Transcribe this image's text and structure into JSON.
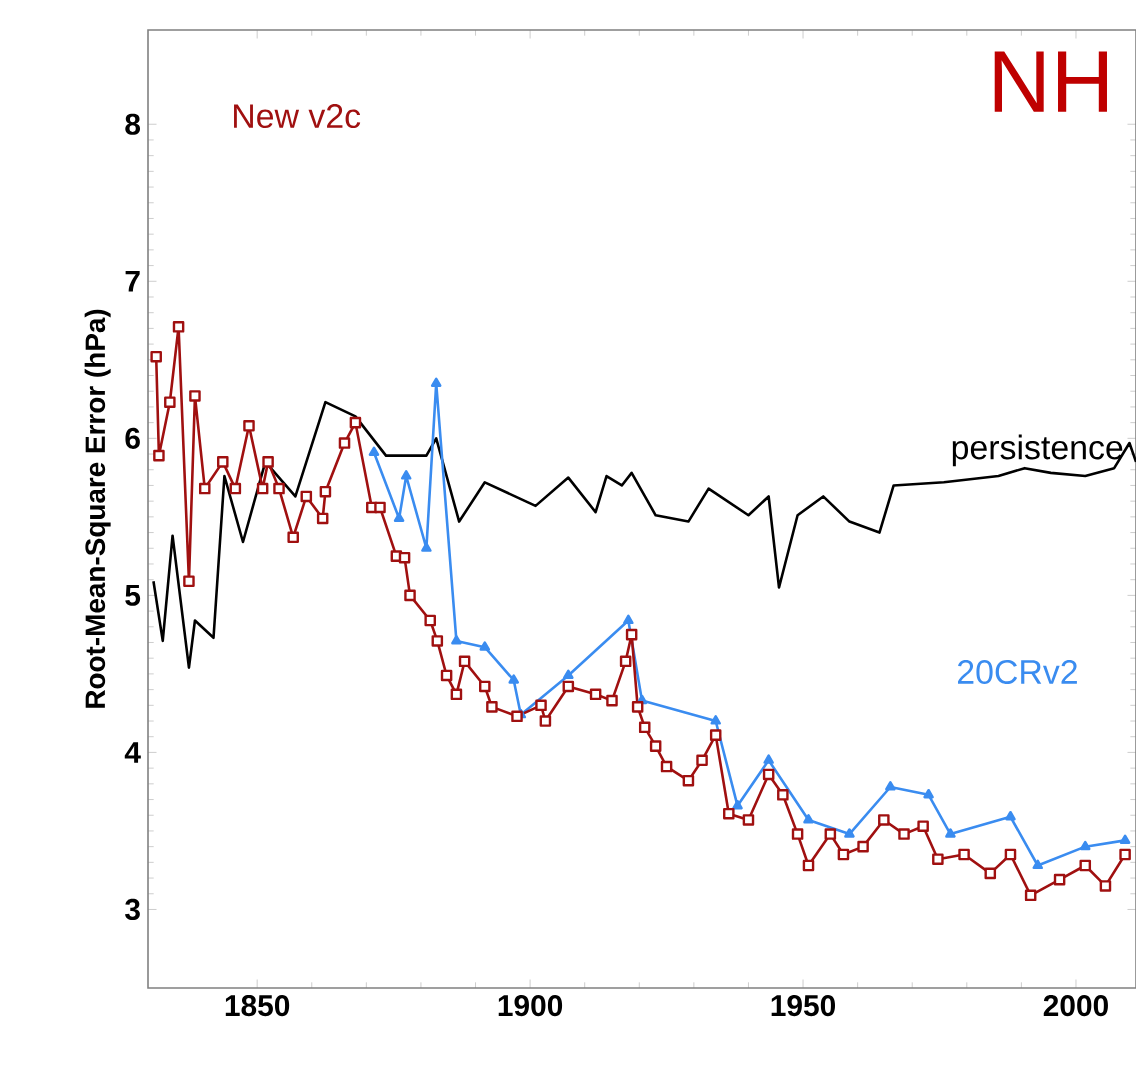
{
  "chart_data": {
    "type": "line",
    "title": "NH",
    "ylabel": "Root-Mean-Square Error (hPa)",
    "xlim": [
      1830,
      2011
    ],
    "ylim": [
      2.5,
      8.6
    ],
    "xticks": [
      1850,
      1900,
      1950,
      2000
    ],
    "yticks": [
      3,
      4,
      5,
      6,
      7,
      8
    ],
    "grid": false,
    "legend": false,
    "series": [
      {
        "name": "persistence",
        "color": "#000000",
        "marker": "none",
        "x": [
          1831,
          1832.7,
          1834.5,
          1837.5,
          1838.6,
          1842,
          1844,
          1847.4,
          1851.5,
          1857,
          1862.5,
          1868,
          1873.6,
          1881,
          1882.8,
          1887,
          1891.7,
          1901,
          1907,
          1912,
          1914,
          1916.8,
          1918.6,
          1923,
          1929,
          1932.7,
          1940,
          1943.7,
          1945.6,
          1949,
          1953.7,
          1958.5,
          1964,
          1966.6,
          1975.8,
          1985.8,
          1990.6,
          1995.4,
          2001.7,
          2007,
          2009.8,
          2011
        ],
        "values": [
          5.09,
          4.71,
          5.38,
          4.54,
          4.84,
          4.73,
          5.76,
          5.34,
          5.85,
          5.63,
          6.23,
          6.14,
          5.89,
          5.89,
          6.0,
          5.47,
          5.72,
          5.57,
          5.75,
          5.53,
          5.76,
          5.7,
          5.78,
          5.51,
          5.47,
          5.68,
          5.51,
          5.63,
          5.05,
          5.51,
          5.63,
          5.47,
          5.4,
          5.7,
          5.72,
          5.76,
          5.81,
          5.78,
          5.76,
          5.81,
          5.97,
          5.85
        ]
      },
      {
        "name": "20CRv2",
        "color": "#3a8cf0",
        "marker": "triangle",
        "x": [
          1871.4,
          1876,
          1877.3,
          1881,
          1882.8,
          1886.5,
          1891.7,
          1897,
          1898.3,
          1907,
          1918,
          1920.5,
          1934,
          1938,
          1943.7,
          1951,
          1958.5,
          1966,
          1973,
          1977,
          1988,
          1993,
          2001.7,
          2009
        ],
        "values": [
          5.91,
          5.49,
          5.76,
          5.3,
          6.35,
          4.71,
          4.67,
          4.46,
          4.24,
          4.49,
          4.84,
          4.33,
          4.2,
          3.66,
          3.95,
          3.57,
          3.48,
          3.78,
          3.73,
          3.48,
          3.59,
          3.28,
          3.4,
          3.44
        ]
      },
      {
        "name": "New v2c",
        "color": "#a01010",
        "marker": "square",
        "x": [
          1831.5,
          1832,
          1834,
          1835.6,
          1837.5,
          1838.6,
          1840.4,
          1843.7,
          1846,
          1848.5,
          1851,
          1852,
          1854,
          1856.6,
          1859,
          1862,
          1862.5,
          1866,
          1868,
          1871,
          1872.5,
          1875.5,
          1877,
          1878,
          1881.7,
          1883,
          1884.7,
          1886.5,
          1888,
          1891.7,
          1893,
          1897.6,
          1902,
          1902.8,
          1907,
          1912,
          1915,
          1917.5,
          1918.6,
          1919.7,
          1921,
          1923,
          1925,
          1929,
          1931.5,
          1934,
          1936.4,
          1940,
          1943.7,
          1946.3,
          1949,
          1951,
          1955,
          1957.4,
          1961,
          1964.8,
          1968.5,
          1972,
          1974.7,
          1979.5,
          1984.3,
          1988,
          1991.7,
          1997,
          2001.7,
          2005.4,
          2009
        ],
        "values": [
          6.52,
          5.89,
          6.23,
          6.71,
          5.09,
          6.27,
          5.68,
          5.85,
          5.68,
          6.08,
          5.68,
          5.85,
          5.68,
          5.37,
          5.63,
          5.49,
          5.66,
          5.97,
          6.1,
          5.56,
          5.56,
          5.25,
          5.24,
          5.0,
          4.84,
          4.71,
          4.49,
          4.37,
          4.58,
          4.42,
          4.29,
          4.23,
          4.3,
          4.2,
          4.42,
          4.37,
          4.33,
          4.58,
          4.75,
          4.29,
          4.16,
          4.04,
          3.91,
          3.82,
          3.95,
          4.11,
          3.61,
          3.57,
          3.86,
          3.73,
          3.48,
          3.28,
          3.48,
          3.35,
          3.4,
          3.57,
          3.48,
          3.53,
          3.32,
          3.35,
          3.23,
          3.35,
          3.09,
          3.19,
          3.28,
          3.15,
          3.35
        ]
      }
    ]
  }
}
